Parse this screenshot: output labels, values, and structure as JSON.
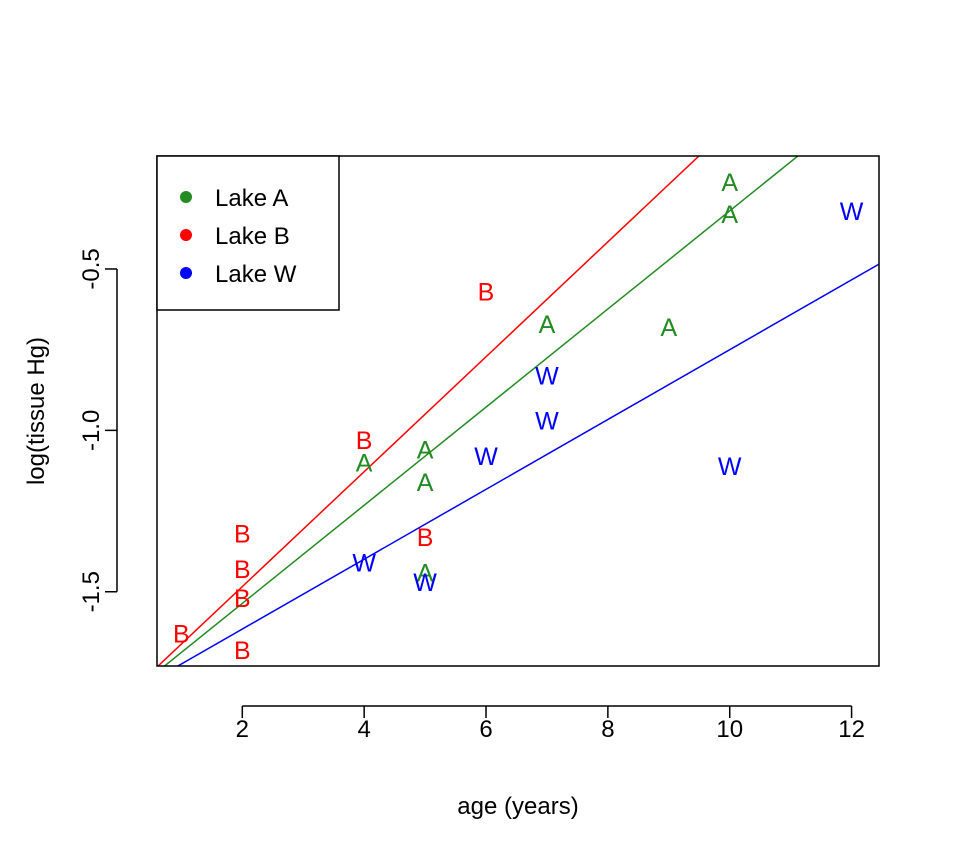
{
  "chart_data": {
    "type": "scatter",
    "title": "",
    "xlabel": "age (years)",
    "ylabel": "log(tissue Hg)",
    "xlim": [
      0.6,
      12.45
    ],
    "ylim": [
      -1.73,
      -0.15
    ],
    "x_ticks": [
      2,
      4,
      6,
      8,
      10,
      12
    ],
    "x_tick_labels": [
      "2",
      "4",
      "6",
      "8",
      "10",
      "12"
    ],
    "y_ticks": [
      -1.5,
      -1.0,
      -0.5
    ],
    "y_tick_labels": [
      "-1.5",
      "-1.0",
      "-0.5"
    ],
    "grid": false,
    "legend_position": "top-left",
    "series": [
      {
        "name": "Lake A",
        "marker": "A",
        "color": "#228B22",
        "points": [
          {
            "x": 10,
            "y": -0.23
          },
          {
            "x": 10,
            "y": -0.33
          },
          {
            "x": 7,
            "y": -0.67
          },
          {
            "x": 9,
            "y": -0.68
          },
          {
            "x": 5,
            "y": -1.06
          },
          {
            "x": 4,
            "y": -1.1
          },
          {
            "x": 5,
            "y": -1.16
          },
          {
            "x": 5,
            "y": -1.44
          }
        ],
        "fit": {
          "intercept": -1.84,
          "slope": 0.152
        }
      },
      {
        "name": "Lake B",
        "marker": "B",
        "color": "#FF0000",
        "points": [
          {
            "x": 6,
            "y": -0.57
          },
          {
            "x": 4,
            "y": -1.03
          },
          {
            "x": 2,
            "y": -1.32
          },
          {
            "x": 5,
            "y": -1.33
          },
          {
            "x": 2,
            "y": -1.43
          },
          {
            "x": 2,
            "y": -1.52
          },
          {
            "x": 1,
            "y": -1.63
          },
          {
            "x": 2,
            "y": -1.68
          }
        ],
        "fit": {
          "intercept": -1.84,
          "slope": 0.178
        }
      },
      {
        "name": "Lake W",
        "marker": "W",
        "color": "#0000FF",
        "points": [
          {
            "x": 12,
            "y": -0.32
          },
          {
            "x": 7,
            "y": -0.83
          },
          {
            "x": 7,
            "y": -0.97
          },
          {
            "x": 6,
            "y": -1.08
          },
          {
            "x": 10,
            "y": -1.11
          },
          {
            "x": 4,
            "y": -1.41
          },
          {
            "x": 5,
            "y": -1.47
          }
        ],
        "fit": {
          "intercept": -1.832,
          "slope": 0.1082
        }
      }
    ]
  }
}
